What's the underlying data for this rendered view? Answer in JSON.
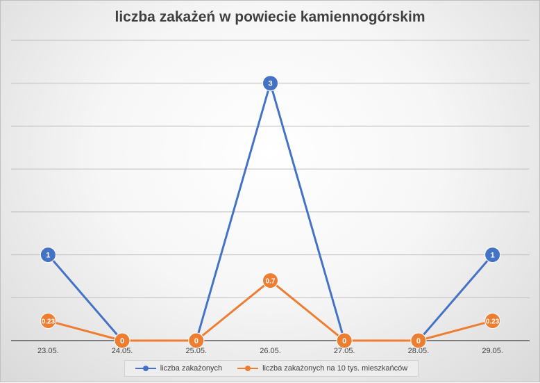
{
  "chart_data": {
    "type": "line",
    "title": "liczba zakażeń w powiecie kamiennogórskim",
    "categories": [
      "23.05.",
      "24.05.",
      "25.05.",
      "26.05.",
      "27.05.",
      "28.05.",
      "29.05."
    ],
    "series": [
      {
        "name": "liczba zakażonych",
        "color": "#4472C4",
        "values": [
          1,
          0,
          0,
          3,
          0,
          0,
          1
        ],
        "labels": [
          "1",
          "0",
          "0",
          "3",
          "0",
          "0",
          "1"
        ]
      },
      {
        "name": "liczba zakażonych na 10 tys. mieszkańców",
        "color": "#ED7D31",
        "values": [
          0.23,
          0,
          0,
          0.7,
          0,
          0,
          0.23
        ],
        "labels": [
          "0.23",
          "0",
          "0",
          "0.7",
          "0",
          "0",
          "0.23"
        ]
      }
    ],
    "ylim": [
      0,
      3.5
    ],
    "grid": true,
    "legend": "bottom"
  }
}
